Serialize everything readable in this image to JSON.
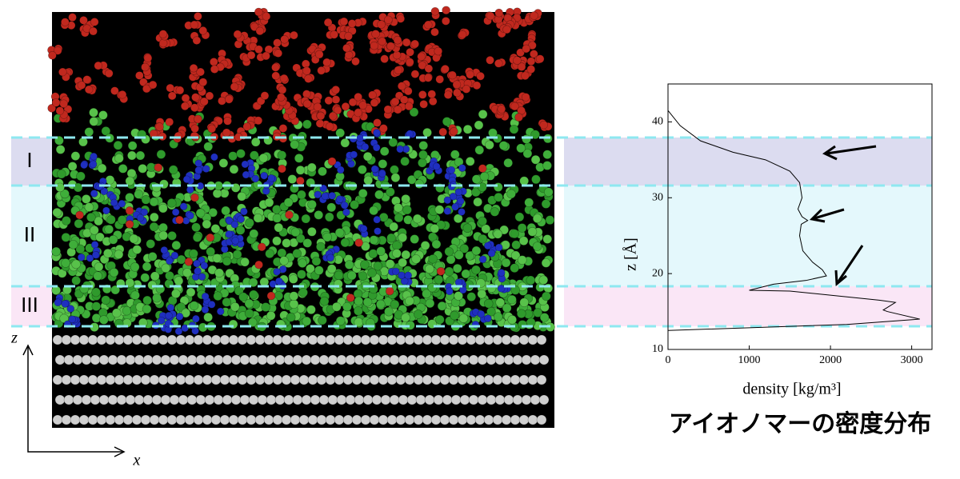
{
  "chart_data": {
    "type": "line",
    "xlabel": "density  [kg/m³]",
    "ylabel": "z [Å]",
    "caption": "アイオノマーの密度分布",
    "regions": [
      "I",
      "II",
      "III"
    ],
    "snapshot_axes": [
      "z",
      "x"
    ],
    "xlim": [
      0,
      3250
    ],
    "xticks": [
      0,
      1000,
      2000,
      3000
    ],
    "ylim": [
      10,
      45
    ],
    "yticks": [
      10,
      20,
      30,
      40
    ],
    "series": [
      {
        "color": "#000000",
        "x": [
          0,
          150,
          400,
          800,
          1200,
          1500,
          1620,
          1650,
          1600,
          1650,
          1720,
          1640,
          1620,
          1660,
          1780,
          1900,
          1950,
          1700,
          1300,
          1000,
          1500,
          2600,
          2800,
          2650,
          2700,
          3100,
          2200,
          0
        ],
        "y": [
          41.5,
          39.5,
          37.5,
          36,
          35,
          33.5,
          32,
          30,
          28.5,
          27.5,
          27,
          26.5,
          25,
          23,
          21.5,
          20.5,
          19.7,
          19.1,
          18.6,
          17.8,
          17.7,
          16.5,
          16.2,
          15.2,
          15,
          14,
          13.3,
          12.5
        ]
      }
    ]
  }
}
